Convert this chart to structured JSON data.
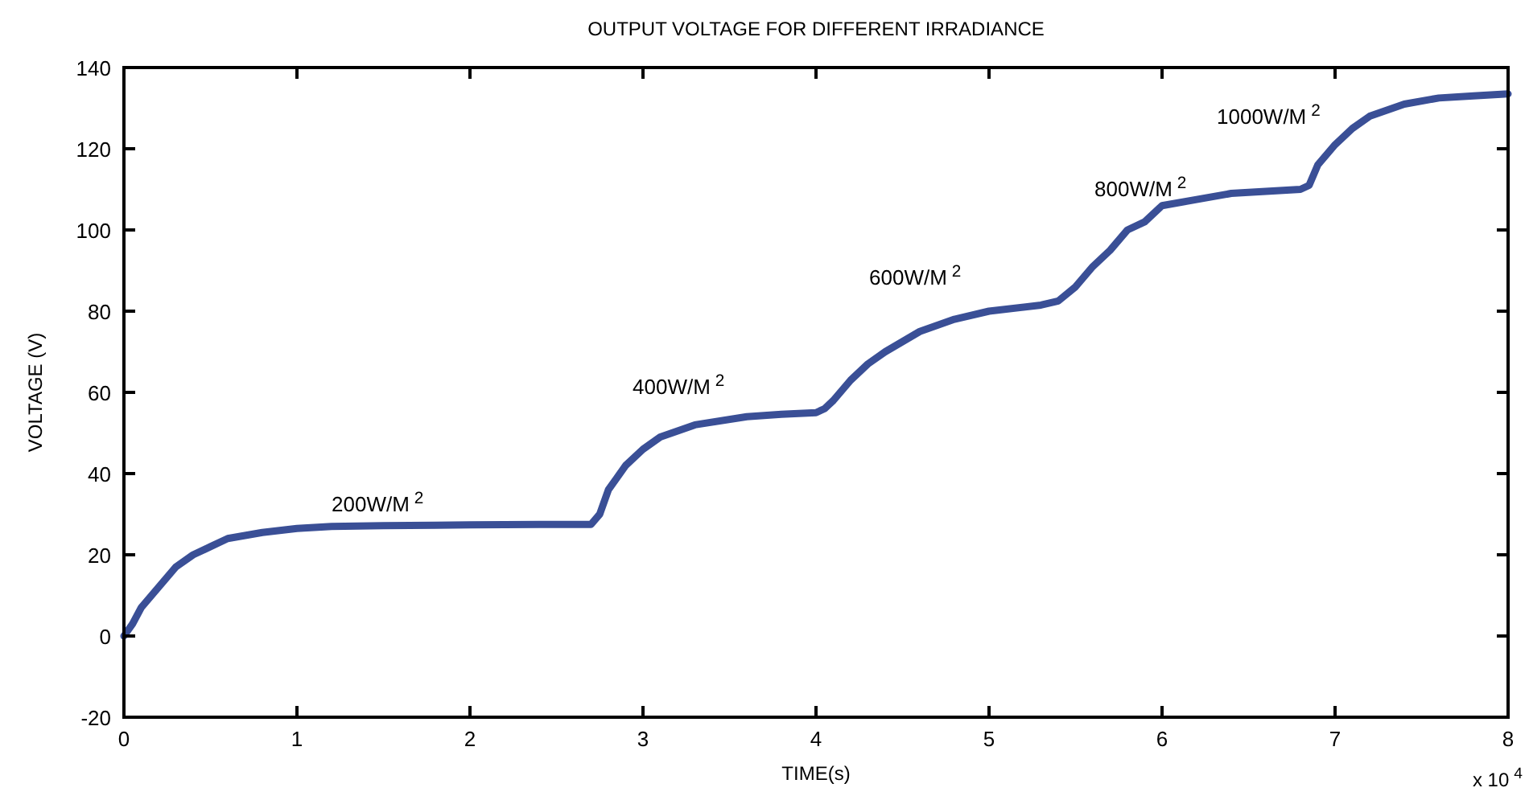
{
  "chart_data": {
    "type": "line",
    "title": "OUTPUT VOLTAGE FOR DIFFERENT IRRADIANCE",
    "xlabel": "TIME(s)",
    "ylabel": "VOLTAGE (V)",
    "x": [
      0,
      0.05,
      0.1,
      0.2,
      0.3,
      0.4,
      0.5,
      0.6,
      0.8,
      1.0,
      1.2,
      1.5,
      1.8,
      2.0,
      2.4,
      2.7,
      2.75,
      2.8,
      2.9,
      3.0,
      3.1,
      3.3,
      3.6,
      3.8,
      4.0,
      4.05,
      4.1,
      4.2,
      4.3,
      4.4,
      4.6,
      4.8,
      5.0,
      5.3,
      5.4,
      5.5,
      5.6,
      5.7,
      5.8,
      5.9,
      6.0,
      6.2,
      6.4,
      6.6,
      6.8,
      6.85,
      6.9,
      7.0,
      7.1,
      7.2,
      7.4,
      7.6,
      7.8,
      8.0
    ],
    "series": [
      {
        "color": "#3a4f96",
        "values": [
          0,
          3,
          7,
          12,
          17,
          20,
          22,
          24,
          25.5,
          26.5,
          27,
          27.2,
          27.3,
          27.4,
          27.5,
          27.5,
          30,
          36,
          42,
          46,
          49,
          52,
          54,
          54.6,
          55,
          56,
          58,
          63,
          67,
          70,
          75,
          78,
          80,
          81.5,
          82.5,
          86,
          91,
          95,
          100,
          102,
          106,
          107.5,
          109,
          109.5,
          110,
          111,
          116,
          121,
          125,
          128,
          131,
          132.5,
          133,
          133.5
        ]
      }
    ],
    "xlim": [
      0,
      8
    ],
    "xticks": [
      0,
      1,
      2,
      3,
      4,
      5,
      6,
      7,
      8
    ],
    "ylim": [
      -20,
      140
    ],
    "yticks": [
      -20,
      0,
      20,
      40,
      60,
      80,
      100,
      120,
      140
    ],
    "grid": false,
    "line_style": "solid",
    "marker": "none",
    "annotations": [
      "200W/M$^{2}$",
      "400W/M$^{2}$",
      "600W/M$^{2}$",
      "800W/M$^{2}$",
      "1000W/M$^{2}$",
      "x 10$^{4}$"
    ]
  }
}
